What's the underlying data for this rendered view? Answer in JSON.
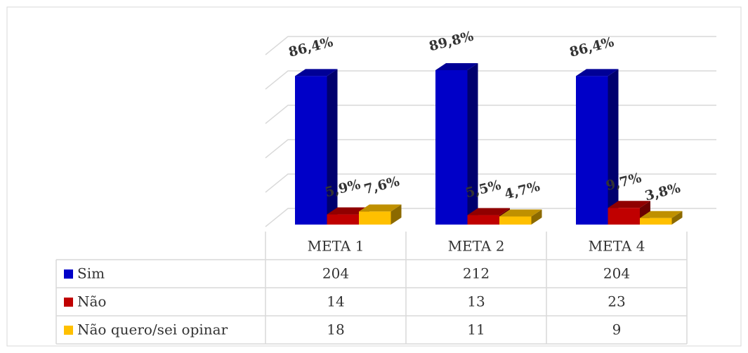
{
  "chart_data": {
    "type": "bar3d",
    "categories": [
      "META 1",
      "META 2",
      "META 4"
    ],
    "series": [
      {
        "name": "Sim",
        "color": "#0000c8",
        "values": [
          86.4,
          89.8,
          86.4
        ],
        "value_labels": [
          "86,4%",
          "89,8%",
          "86,4%"
        ],
        "table_values": [
          204,
          212,
          204
        ]
      },
      {
        "name": "Não",
        "color": "#c00000",
        "values": [
          5.9,
          5.5,
          9.7
        ],
        "value_labels": [
          "5,9%",
          "5,5%",
          "9,7%"
        ],
        "table_values": [
          14,
          13,
          23
        ]
      },
      {
        "name": "Não quero/sei opinar",
        "color": "#ffc000",
        "values": [
          7.6,
          4.7,
          3.8
        ],
        "value_labels": [
          "7,6%",
          "4,7%",
          "3,8%"
        ],
        "table_values": [
          18,
          11,
          9
        ]
      }
    ],
    "ylim": [
      0,
      100
    ],
    "yticks": [
      0,
      20,
      40,
      60,
      80,
      100
    ],
    "grid": true
  }
}
